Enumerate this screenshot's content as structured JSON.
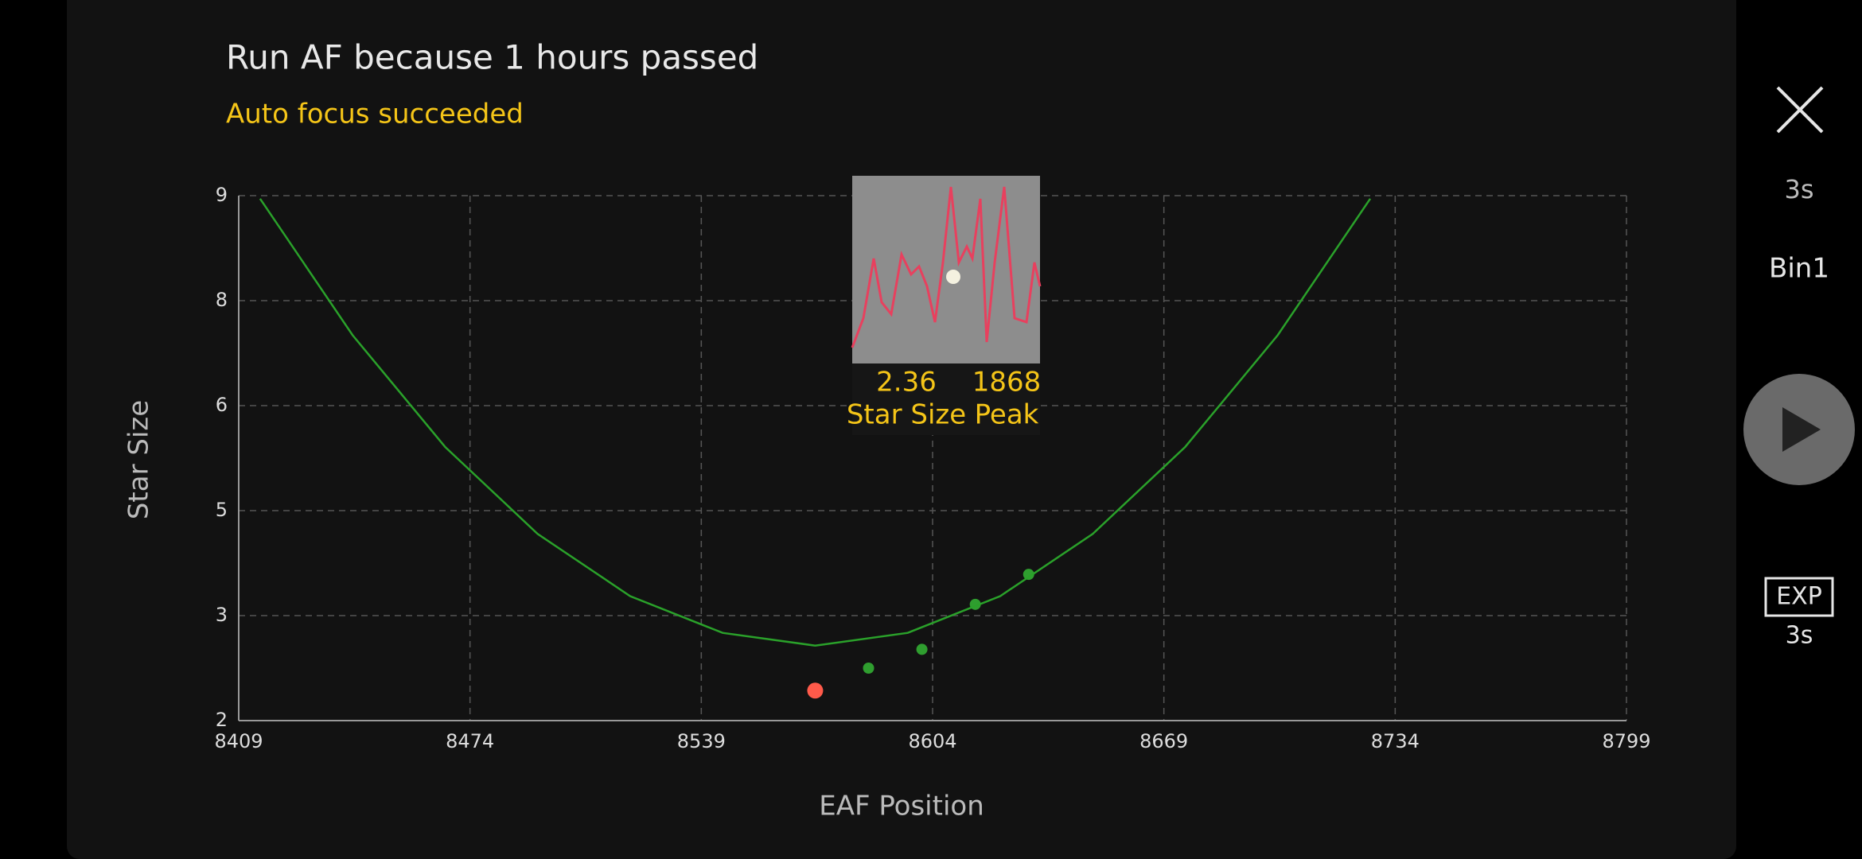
{
  "header": {
    "title": "Run AF because 1 hours passed",
    "status": "Auto focus succeeded"
  },
  "chart_data": {
    "type": "scatter",
    "x_label": "EAF Position",
    "y_label": "Star Size",
    "xlim": [
      8409,
      8799
    ],
    "xticks": [
      8409,
      8474,
      8539,
      8604,
      8669,
      8734,
      8799
    ],
    "ylim": [
      2,
      9
    ],
    "yticks": [
      2,
      {
        "value": 3.4,
        "label": "3"
      },
      {
        "value": 4.8,
        "label": "5"
      },
      {
        "value": 6.2,
        "label": "6"
      },
      {
        "value": 7.6,
        "label": "8"
      },
      9
    ],
    "grid": true,
    "series": [
      {
        "type": "scatter",
        "color": "#2f9e2f",
        "x": [
          8586,
          8601,
          8616,
          8631
        ],
        "values": [
          2.7,
          2.95,
          3.55,
          3.95
        ]
      },
      {
        "type": "scatter",
        "color": "#ff5a4a",
        "x": [
          8571
        ],
        "values": [
          2.4
        ]
      },
      {
        "type": "line",
        "color": "#2aa12a",
        "x": [
          8415,
          8441,
          8467,
          8493,
          8519,
          8545,
          8571,
          8597,
          8623,
          8649,
          8675,
          8701,
          8727
        ],
        "values": [
          8.96,
          7.14,
          5.65,
          4.49,
          3.66,
          3.17,
          3.0,
          3.17,
          3.66,
          4.49,
          5.65,
          7.14,
          8.96
        ]
      }
    ]
  },
  "preview": {
    "star_size": 2.36,
    "peak": 1868,
    "star_size_label": "Star Size",
    "peak_label": "Peak"
  },
  "sidebar": {
    "exposure": "3s",
    "binning": "Bin1",
    "exp_label": "EXP",
    "exp_value": "3s"
  }
}
